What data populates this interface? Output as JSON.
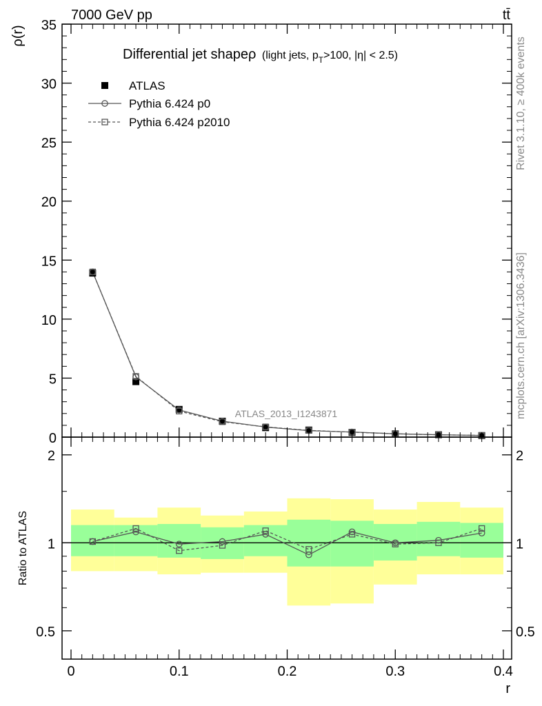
{
  "header": {
    "left": "7000 GeV pp",
    "right": "tt̄"
  },
  "side_labels": {
    "rivet": "Rivet 3.1.10, ≥ 400k events",
    "mcplots": "mcplots.cern.ch [arXiv:1306.3436]"
  },
  "watermark": "ATLAS_2013_I1243871",
  "chart_data": [
    {
      "type": "line",
      "panel": "main",
      "title": "Differential jet shapeρ",
      "title_sub": {
        "pre": "(light jets, p",
        "sub": "T",
        "post": ">100, |η| < 2.5)"
      },
      "ylabel": "ρ(r)",
      "xlabel": "",
      "xlim": [
        0,
        0.4
      ],
      "ylim": [
        0,
        35
      ],
      "yticks": [
        0,
        5,
        10,
        15,
        20,
        25,
        30,
        35
      ],
      "ytick_labels": [
        "0",
        "5",
        "10",
        "15",
        "20",
        "25",
        "30",
        "35"
      ],
      "grid": false,
      "legend_position": "top-left",
      "bins": [
        [
          0,
          0.04
        ],
        [
          0.04,
          0.08
        ],
        [
          0.08,
          0.12
        ],
        [
          0.12,
          0.16
        ],
        [
          0.16,
          0.2
        ],
        [
          0.2,
          0.24
        ],
        [
          0.24,
          0.28
        ],
        [
          0.28,
          0.32
        ],
        [
          0.32,
          0.36
        ],
        [
          0.36,
          0.4
        ]
      ],
      "x": [
        0.02,
        0.06,
        0.1,
        0.14,
        0.18,
        0.22,
        0.26,
        0.3,
        0.34,
        0.38
      ],
      "series": [
        {
          "name": "ATLAS",
          "marker": "filled-square",
          "color": "#000000",
          "values": [
            13.9,
            4.7,
            2.35,
            1.35,
            0.8,
            0.6,
            0.4,
            0.28,
            0.2,
            0.13
          ]
        },
        {
          "name": "Pythia 6.424 p0",
          "marker": "open-circle",
          "line": "solid",
          "color": "#555555",
          "values": [
            14.0,
            5.1,
            2.3,
            1.35,
            0.85,
            0.55,
            0.43,
            0.28,
            0.2,
            0.14
          ]
        },
        {
          "name": "Pythia 6.424 p2010",
          "marker": "open-square",
          "line": "dashed",
          "color": "#555555",
          "values": [
            14.0,
            5.15,
            2.2,
            1.3,
            0.87,
            0.57,
            0.42,
            0.28,
            0.2,
            0.14
          ]
        }
      ]
    },
    {
      "type": "line",
      "panel": "ratio",
      "ylabel": "Ratio to ATLAS",
      "xlabel": "r",
      "xlim": [
        0,
        0.4
      ],
      "ylim": [
        0.4,
        2.3
      ],
      "log_y": true,
      "xticks": [
        0,
        0.1,
        0.2,
        0.3,
        0.4
      ],
      "xtick_labels": [
        "0",
        "0.1",
        "0.2",
        "0.3",
        "0.4"
      ],
      "yticks": [
        0.5,
        1,
        2
      ],
      "ytick_labels": [
        "0.5",
        "1",
        "2"
      ],
      "grid": false,
      "x": [
        0.02,
        0.06,
        0.1,
        0.14,
        0.18,
        0.22,
        0.26,
        0.3,
        0.34,
        0.38
      ],
      "bands": {
        "inner_color": "#99ff99",
        "outer_color": "#ffff99",
        "inner_low": [
          0.9,
          0.9,
          0.89,
          0.88,
          0.9,
          0.83,
          0.83,
          0.87,
          0.9,
          0.89
        ],
        "inner_high": [
          1.15,
          1.15,
          1.16,
          1.13,
          1.15,
          1.2,
          1.19,
          1.16,
          1.18,
          1.17
        ],
        "outer_low": [
          0.8,
          0.8,
          0.78,
          0.79,
          0.79,
          0.61,
          0.62,
          0.72,
          0.78,
          0.78
        ],
        "outer_high": [
          1.3,
          1.22,
          1.32,
          1.24,
          1.28,
          1.42,
          1.41,
          1.3,
          1.38,
          1.32
        ]
      },
      "series": [
        {
          "name": "Pythia 6.424 p0",
          "marker": "open-circle",
          "line": "solid",
          "color": "#555555",
          "values": [
            1.01,
            1.09,
            0.99,
            1.01,
            1.07,
            0.91,
            1.09,
            1.0,
            1.02,
            1.08
          ]
        },
        {
          "name": "Pythia 6.424 p2010",
          "marker": "open-square",
          "line": "dashed",
          "color": "#555555",
          "values": [
            1.01,
            1.12,
            0.94,
            0.98,
            1.1,
            0.95,
            1.07,
            0.99,
            1.0,
            1.12
          ]
        }
      ]
    }
  ]
}
